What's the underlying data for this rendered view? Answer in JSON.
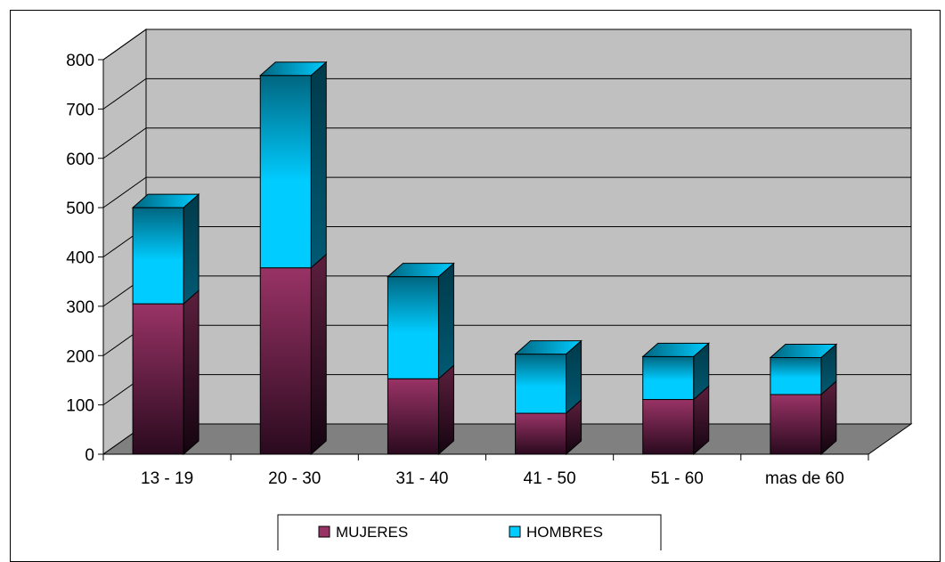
{
  "chart_data": {
    "type": "bar",
    "stacked": true,
    "three_d": true,
    "categories": [
      "13 - 19",
      "20 - 30",
      "31 - 40",
      "41 - 50",
      "51 - 60",
      "mas de 60"
    ],
    "series": [
      {
        "name": "MUJERES",
        "values": [
          305,
          378,
          153,
          83,
          111,
          121
        ],
        "color": "#993366"
      },
      {
        "name": "HOMBRES",
        "values": [
          195,
          390,
          207,
          120,
          87,
          75
        ],
        "color": "#00CCFF"
      }
    ],
    "yticks": [
      "0",
      "100",
      "200",
      "300",
      "400",
      "500",
      "600",
      "700",
      "800"
    ],
    "ylim": [
      0,
      800
    ],
    "grid": true,
    "legend_position": "bottom",
    "colors": {
      "wall": "#C0C0C0",
      "floor": "#808080",
      "mujeres_dark": "#2A0A1E",
      "hombres_dark": "#006680"
    }
  }
}
